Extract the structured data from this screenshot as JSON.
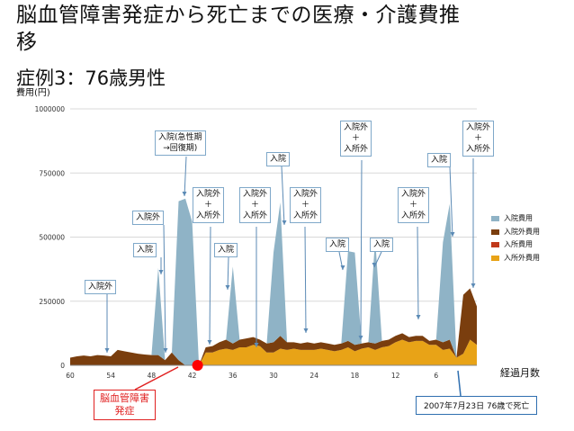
{
  "page": {
    "title_line1": "脳血管障害発症から死亡までの医療・介護費推",
    "title_line2": "移",
    "subtitle": "症例3：76歳男性",
    "colors": {
      "入院費用": "#8fb3c6",
      "入院外費用": "#7a3e0e",
      "入所費用": "#c0391b",
      "入所外費用": "#e8a317"
    }
  },
  "chart_data": {
    "type": "area",
    "ylabel": "費用(円)",
    "xlabel": "経過月数",
    "ylim": [
      0,
      1000000
    ],
    "yticks": [
      0,
      250000,
      500000,
      750000,
      1000000
    ],
    "yticklabels": [
      "0",
      "250000",
      "500000",
      "750000",
      "1000000"
    ],
    "xlim": [
      60,
      0
    ],
    "xticks": [
      60,
      54,
      48,
      42,
      36,
      30,
      24,
      18,
      12,
      6
    ],
    "xticklabels": [
      "60",
      "54",
      "48",
      "42",
      "36",
      "30",
      "24",
      "18",
      "12",
      "6"
    ],
    "grid": true,
    "legend_position": "right",
    "x": [
      60,
      59,
      58,
      57,
      56,
      55,
      54,
      53,
      52,
      51,
      50,
      49,
      48,
      47,
      46,
      45,
      44,
      43,
      42,
      41,
      40,
      39,
      38,
      37,
      36,
      35,
      34,
      33,
      32,
      31,
      30,
      29,
      28,
      27,
      26,
      25,
      24,
      23,
      22,
      21,
      20,
      19,
      18,
      17,
      16,
      15,
      14,
      13,
      12,
      11,
      10,
      9,
      8,
      7,
      6,
      5,
      4,
      3,
      2,
      1,
      0
    ],
    "series": [
      {
        "name": "入院費用",
        "values": [
          0,
          0,
          0,
          0,
          0,
          0,
          0,
          0,
          0,
          0,
          0,
          0,
          0,
          340000,
          0,
          0,
          620000,
          650000,
          560000,
          0,
          0,
          0,
          0,
          0,
          300000,
          0,
          0,
          0,
          0,
          0,
          350000,
          520000,
          0,
          0,
          0,
          0,
          0,
          0,
          0,
          0,
          0,
          350000,
          360000,
          0,
          0,
          410000,
          0,
          0,
          0,
          0,
          0,
          0,
          0,
          0,
          0,
          390000,
          530000,
          0,
          0,
          0,
          0
        ]
      },
      {
        "name": "入院外費用",
        "values": [
          30000,
          35000,
          38000,
          35000,
          40000,
          38000,
          35000,
          60000,
          55000,
          50000,
          45000,
          42000,
          40000,
          40000,
          20000,
          50000,
          20000,
          0,
          0,
          0,
          20000,
          25000,
          30000,
          35000,
          25000,
          30000,
          35000,
          30000,
          25000,
          35000,
          40000,
          50000,
          30000,
          25000,
          25000,
          30000,
          25000,
          25000,
          25000,
          25000,
          25000,
          25000,
          25000,
          20000,
          20000,
          25000,
          25000,
          25000,
          25000,
          25000,
          20000,
          20000,
          20000,
          15000,
          20000,
          30000,
          35000,
          0,
          230000,
          200000,
          150000
        ]
      },
      {
        "name": "入所費用",
        "values": [
          0,
          0,
          0,
          0,
          0,
          0,
          0,
          0,
          0,
          0,
          0,
          0,
          0,
          0,
          0,
          0,
          0,
          0,
          0,
          0,
          0,
          0,
          0,
          0,
          0,
          0,
          0,
          0,
          0,
          0,
          0,
          0,
          0,
          0,
          0,
          0,
          0,
          0,
          0,
          0,
          0,
          0,
          0,
          0,
          0,
          0,
          0,
          0,
          0,
          0,
          0,
          0,
          0,
          0,
          0,
          0,
          0,
          0,
          0,
          0,
          0
        ]
      },
      {
        "name": "入所外費用",
        "values": [
          0,
          0,
          0,
          0,
          0,
          0,
          0,
          0,
          0,
          0,
          0,
          0,
          0,
          0,
          0,
          0,
          0,
          0,
          0,
          0,
          50000,
          50000,
          60000,
          65000,
          60000,
          70000,
          70000,
          80000,
          75000,
          50000,
          50000,
          65000,
          60000,
          65000,
          60000,
          60000,
          60000,
          65000,
          60000,
          55000,
          60000,
          70000,
          55000,
          65000,
          70000,
          60000,
          70000,
          75000,
          90000,
          100000,
          90000,
          95000,
          95000,
          80000,
          80000,
          60000,
          65000,
          30000,
          45000,
          100000,
          80000
        ]
      }
    ],
    "annotations": [
      {
        "text": "入院外"
      },
      {
        "text": "入院"
      },
      {
        "text": "入院外"
      },
      {
        "text": "入院(急性期\n→回復期)"
      },
      {
        "text": "入院外\n＋\n入所外"
      },
      {
        "text": "入院"
      },
      {
        "text": "入院外\n＋\n入所外"
      },
      {
        "text": "入院"
      },
      {
        "text": "入院外\n＋\n入所外"
      },
      {
        "text": "入院"
      },
      {
        "text": "入院外\n＋\n入所外"
      },
      {
        "text": "入院"
      },
      {
        "text": "入院外\n＋\n入所外"
      },
      {
        "text": "入院"
      },
      {
        "text": "入院外\n＋\n入所外"
      }
    ],
    "onset_label": "脳血管障害\n発症",
    "death_label": "2007年7月23日 76歳で死亡"
  }
}
